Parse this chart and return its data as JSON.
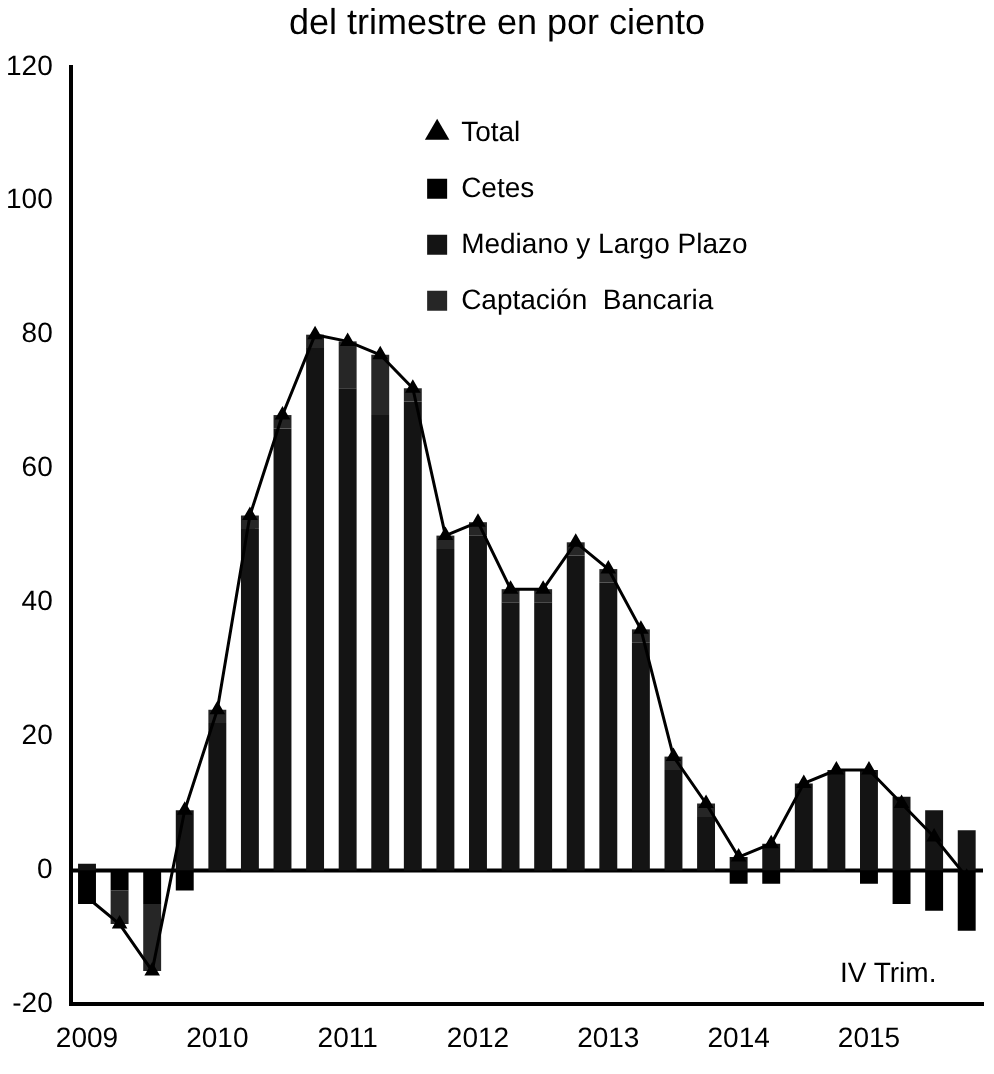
{
  "chart_data": {
    "type": "bar",
    "stacked": true,
    "title": "del trimestre en por ciento",
    "categories": [
      "2009",
      null,
      null,
      null,
      "2010",
      null,
      null,
      null,
      "2011",
      null,
      null,
      null,
      "2012",
      null,
      null,
      null,
      "2013",
      null,
      null,
      null,
      "2014",
      null,
      null,
      null,
      "2015",
      null,
      null,
      null
    ],
    "series": [
      {
        "name": "Total",
        "type": "line",
        "color": "#000000",
        "marker": "triangle",
        "values": [
          -4,
          -8,
          -15,
          9,
          24,
          53,
          68,
          80,
          79,
          77,
          72,
          50,
          52,
          42,
          42,
          49,
          45,
          36,
          17,
          10,
          2,
          4,
          13,
          15,
          15,
          10,
          5,
          -1
        ]
      },
      {
        "name": "Cetes",
        "color": "#000000",
        "values": [
          -5,
          -3,
          -5,
          -3,
          0,
          0,
          0,
          0,
          0,
          0,
          0,
          0,
          0,
          0,
          0,
          0,
          0,
          0,
          0,
          0,
          -2,
          -2,
          0,
          0,
          -2,
          -5,
          -6,
          -9
        ]
      },
      {
        "name": "Mediano y Largo Plazo",
        "color": "#141414",
        "values": [
          1,
          0,
          0,
          9,
          22,
          51,
          66,
          78,
          72,
          68,
          70,
          48,
          50,
          40,
          40,
          47,
          43,
          34,
          15,
          8,
          2,
          4,
          13,
          15,
          15,
          11,
          9,
          6
        ]
      },
      {
        "name": "Captación  Bancaria",
        "color": "#262626",
        "values": [
          0,
          -5,
          -10,
          0,
          2,
          2,
          2,
          2,
          7,
          9,
          2,
          2,
          2,
          2,
          2,
          2,
          2,
          2,
          2,
          2,
          0,
          0,
          0,
          0,
          0,
          0,
          0,
          0
        ]
      }
    ],
    "ref_lines": [
      {
        "axis": "y",
        "value": 0
      }
    ],
    "ylim": [
      -20,
      120
    ],
    "yticks": [
      -20,
      0,
      20,
      40,
      60,
      80,
      100,
      120
    ],
    "grid": false,
    "legend": "top right",
    "annotations": [
      "IV Trim."
    ]
  }
}
